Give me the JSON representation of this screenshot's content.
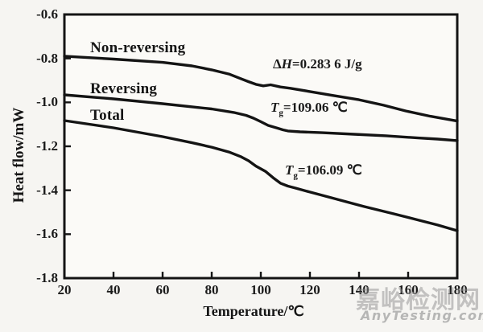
{
  "chart_data": {
    "type": "line",
    "title": "",
    "xlabel": "Temperature/℃",
    "ylabel": "Heat flow/mW",
    "xlim": [
      20,
      180
    ],
    "ylim": [
      -1.8,
      -0.6
    ],
    "grid": false,
    "frame": "full-box",
    "legend_position": "inline-curve-labels",
    "line_color": "#141414",
    "background": "#fbfaf7",
    "x_ticks": [
      20,
      40,
      60,
      80,
      100,
      120,
      140,
      160,
      180
    ],
    "x_tick_labels": [
      "20",
      "40",
      "60",
      "80",
      "100",
      "120",
      "140",
      "160",
      "180"
    ],
    "y_ticks": [
      -0.6,
      -0.8,
      -1.0,
      -1.2,
      -1.4,
      -1.6,
      -1.8
    ],
    "y_tick_labels": [
      "-0.6",
      "-0.8",
      "-1.0",
      "-1.2",
      "-1.4",
      "-1.6",
      "-1.8"
    ],
    "series": [
      {
        "name": "Non-reversing",
        "points": [
          [
            20,
            -0.79
          ],
          [
            40,
            -0.803
          ],
          [
            60,
            -0.818
          ],
          [
            72,
            -0.834
          ],
          [
            80,
            -0.852
          ],
          [
            87,
            -0.871
          ],
          [
            92,
            -0.893
          ],
          [
            95,
            -0.906
          ],
          [
            98,
            -0.918
          ],
          [
            101,
            -0.925
          ],
          [
            104,
            -0.92
          ],
          [
            108,
            -0.93
          ],
          [
            112,
            -0.936
          ],
          [
            120,
            -0.951
          ],
          [
            129,
            -0.968
          ],
          [
            140,
            -0.988
          ],
          [
            150,
            -1.013
          ],
          [
            159,
            -1.039
          ],
          [
            169,
            -1.063
          ],
          [
            180,
            -1.085
          ]
        ]
      },
      {
        "name": "Reversing",
        "points": [
          [
            20,
            -0.966
          ],
          [
            40,
            -0.984
          ],
          [
            60,
            -1.006
          ],
          [
            80,
            -1.03
          ],
          [
            89,
            -1.046
          ],
          [
            94,
            -1.059
          ],
          [
            97,
            -1.072
          ],
          [
            100,
            -1.088
          ],
          [
            103,
            -1.105
          ],
          [
            107,
            -1.118
          ],
          [
            109,
            -1.125
          ],
          [
            111,
            -1.13
          ],
          [
            116,
            -1.134
          ],
          [
            125,
            -1.138
          ],
          [
            138,
            -1.145
          ],
          [
            151,
            -1.152
          ],
          [
            164,
            -1.162
          ],
          [
            172,
            -1.167
          ],
          [
            180,
            -1.174
          ]
        ]
      },
      {
        "name": "Total",
        "points": [
          [
            20,
            -1.083
          ],
          [
            40,
            -1.116
          ],
          [
            60,
            -1.156
          ],
          [
            72,
            -1.184
          ],
          [
            80,
            -1.204
          ],
          [
            87,
            -1.226
          ],
          [
            92,
            -1.248
          ],
          [
            95,
            -1.266
          ],
          [
            98,
            -1.29
          ],
          [
            102,
            -1.315
          ],
          [
            105,
            -1.343
          ],
          [
            108,
            -1.368
          ],
          [
            111,
            -1.381
          ],
          [
            114,
            -1.39
          ],
          [
            120,
            -1.408
          ],
          [
            131,
            -1.441
          ],
          [
            142,
            -1.474
          ],
          [
            154,
            -1.507
          ],
          [
            164,
            -1.535
          ],
          [
            172,
            -1.558
          ],
          [
            180,
            -1.584
          ]
        ]
      }
    ],
    "annotations": [
      {
        "id": "delta-h",
        "prefix": "Δ",
        "var": "H",
        "sub": "",
        "text": "=0.283 6 J/g"
      },
      {
        "id": "tg-reversing",
        "prefix": "",
        "var": "T",
        "sub": "g",
        "text": "=109.06 ℃"
      },
      {
        "id": "tg-total",
        "prefix": "",
        "var": "T",
        "sub": "g",
        "text": "=106.09 ℃"
      }
    ]
  },
  "watermark": {
    "cn": "嘉峪检测网",
    "en": "AnyTesting.com"
  }
}
